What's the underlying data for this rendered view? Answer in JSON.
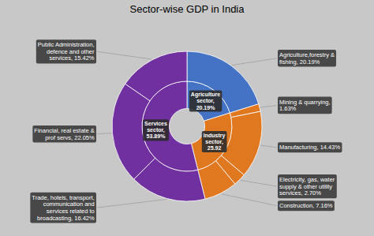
{
  "chart_data": {
    "type": "nested_donut",
    "title": "Sector-wise GDP in India",
    "series": [
      {
        "categories": [
          "Agriculture\nsector,\n20.19%",
          "Industry\nsector,\n25.92",
          "Services\nsector,\n53.89%"
        ],
        "values": [
          20.19,
          25.92,
          53.89
        ],
        "colors": [
          "#4472c4",
          "#e07820",
          "#7030a0"
        ]
      },
      {
        "categories": [
          "Agriculture,forestry &\nfishing, 20.19%",
          "Mining & quarrying,\n1.63%",
          "Manufacturing, 14.43%",
          "Electricity, gas, water\nsupply & other utility\nservices, 2.70%",
          "Construction, 7.16%",
          "Trade, hotels, transport,\ncommunication and\nservices related to\nbroadcasting, 16.42%",
          "Financial, real estate &\nprof servs, 22.05%",
          "Public Administration,\ndefence and other\nservices, 15.42%"
        ],
        "values": [
          20.19,
          1.63,
          14.43,
          2.7,
          7.16,
          16.42,
          22.05,
          15.42
        ],
        "colors": [
          "#4472c4",
          "#e07820",
          "#e07820",
          "#e07820",
          "#e07820",
          "#7030a0",
          "#7030a0",
          "#7030a0"
        ]
      }
    ]
  }
}
